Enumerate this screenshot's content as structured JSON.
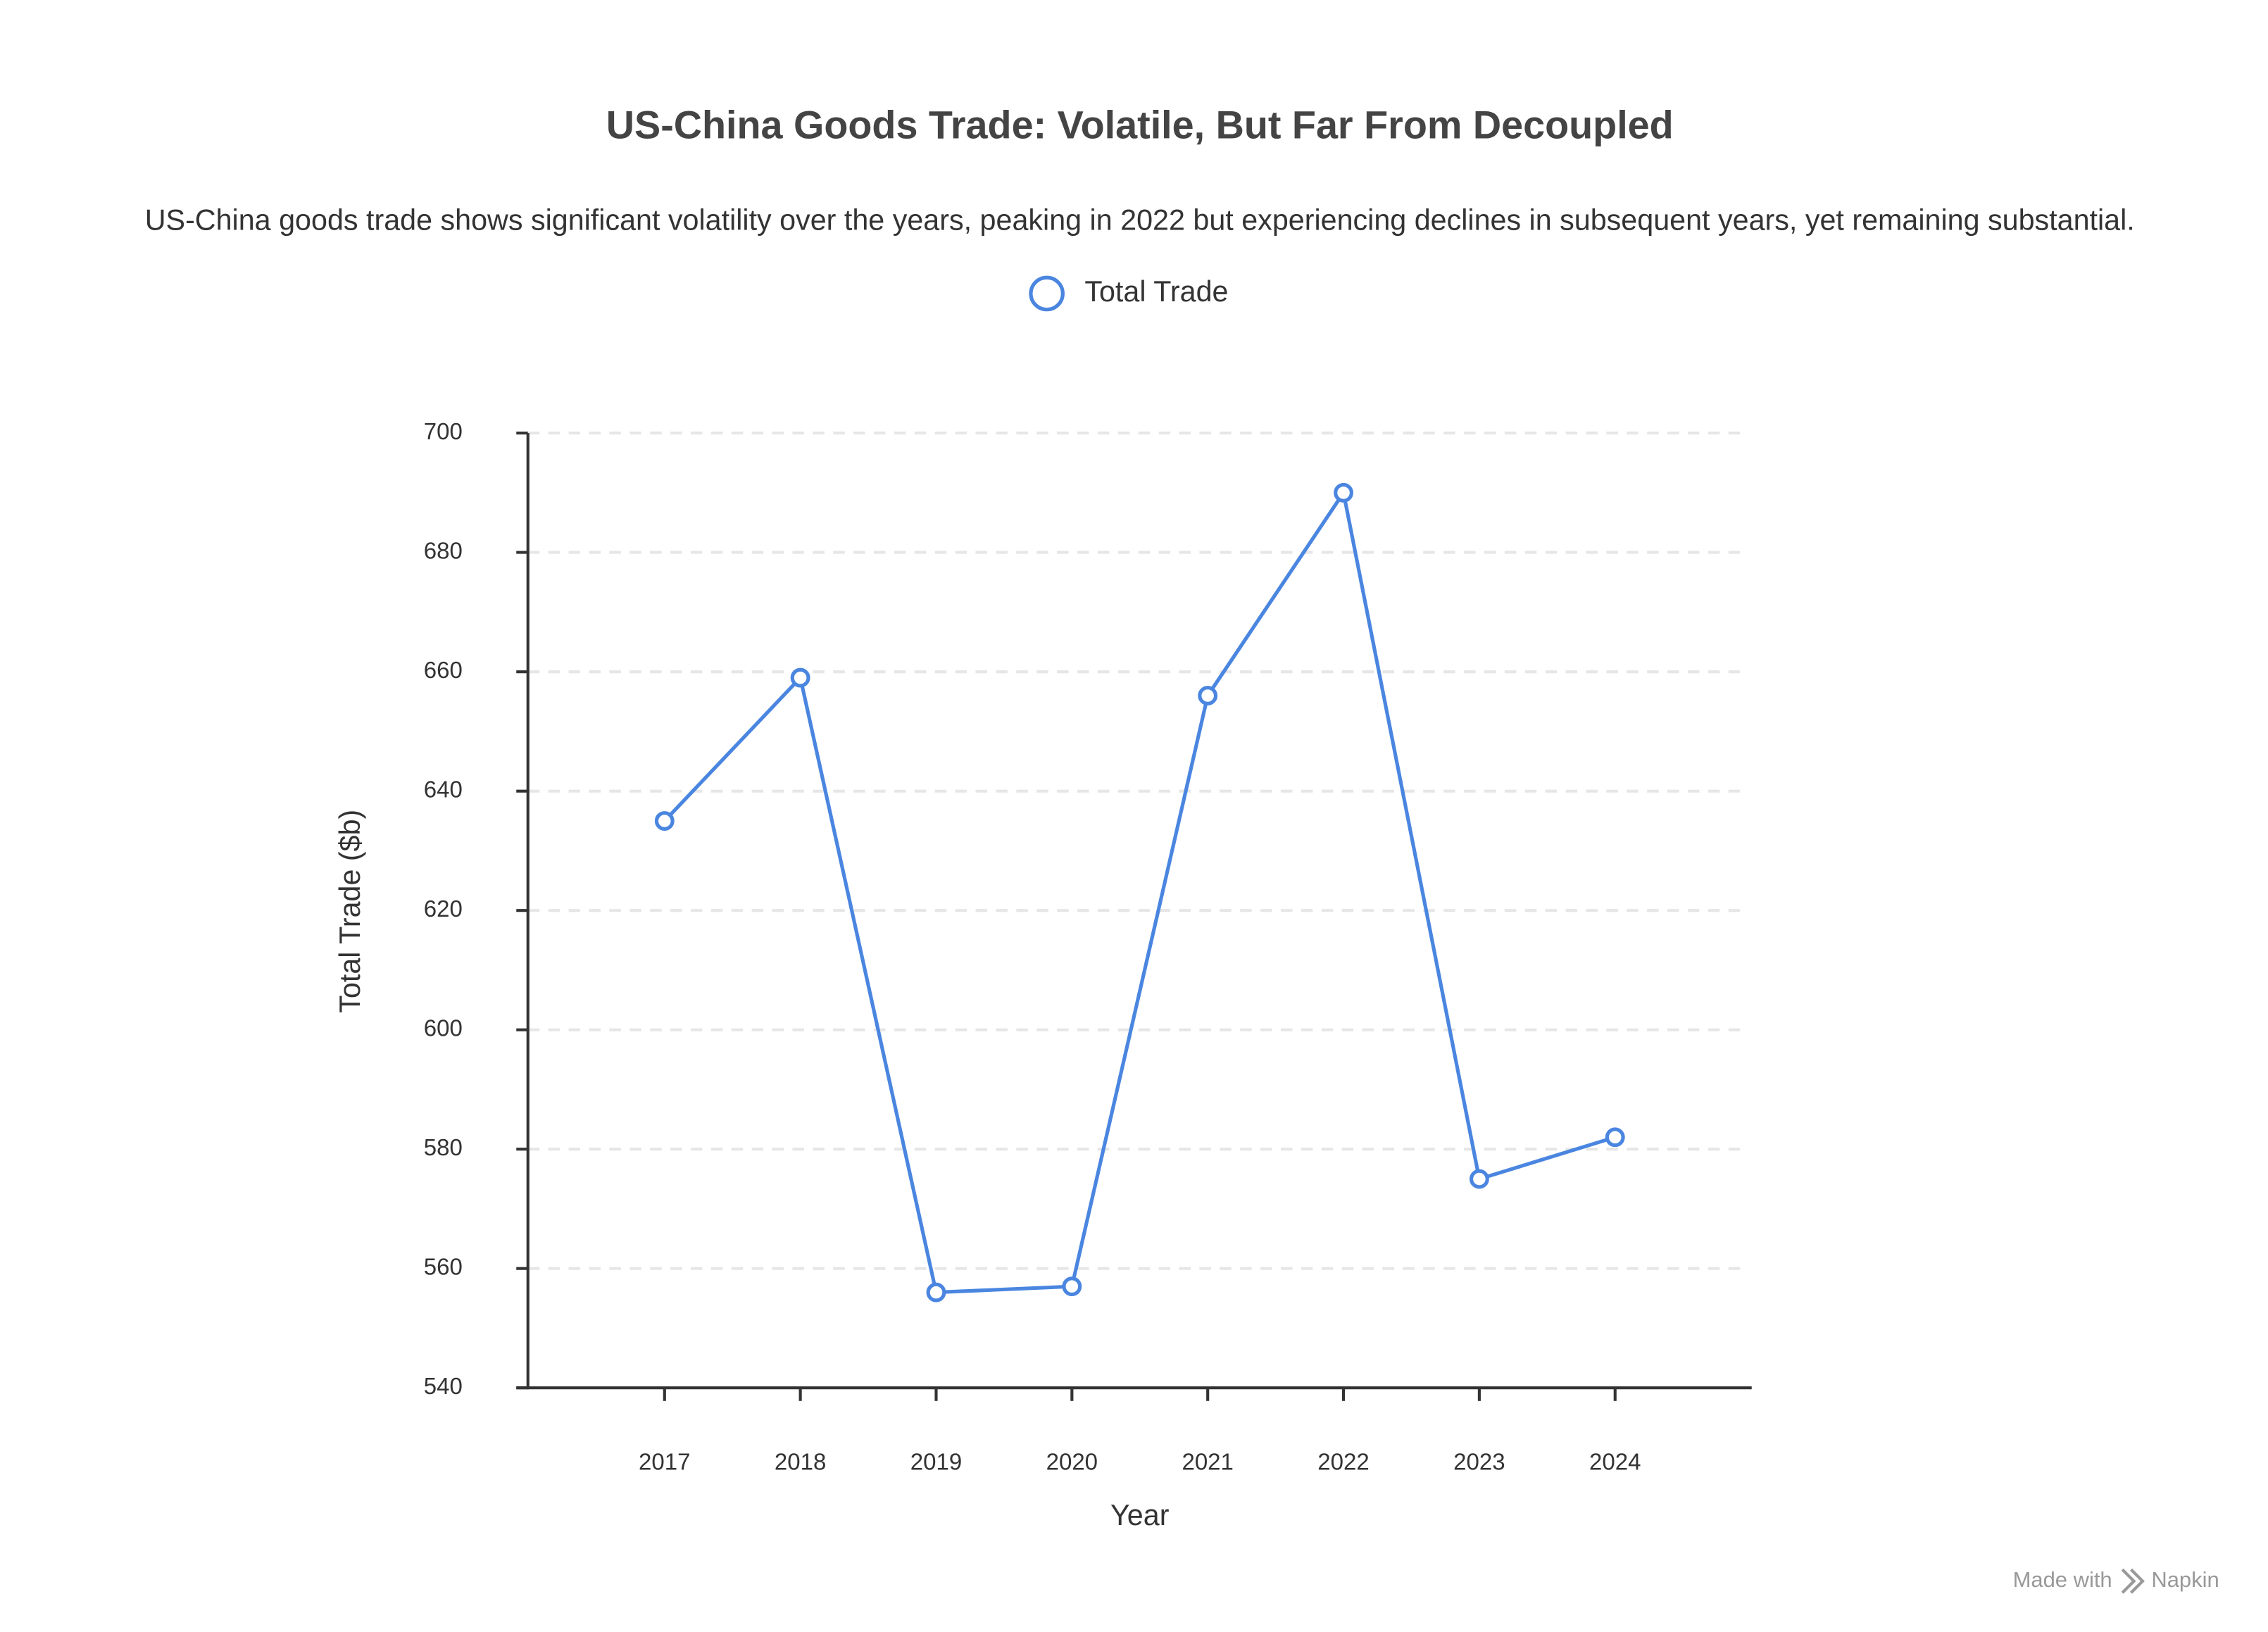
{
  "chart_data": {
    "type": "line",
    "title": "US-China Goods Trade: Volatile, But Far From Decoupled",
    "subtitle": "US-China goods trade shows significant volatility over the years, peaking in 2022 but experiencing declines in subsequent years, yet remaining substantial.",
    "xlabel": "Year",
    "ylabel": "Total Trade ($b)",
    "categories": [
      "2017",
      "2018",
      "2019",
      "2020",
      "2021",
      "2022",
      "2023",
      "2024"
    ],
    "series": [
      {
        "name": "Total Trade",
        "color": "#4a86e0",
        "values": [
          635,
          659,
          556,
          557,
          656,
          690,
          575,
          582
        ]
      }
    ],
    "ylim": [
      540,
      700
    ],
    "yticks": [
      540,
      560,
      580,
      600,
      620,
      640,
      660,
      680,
      700
    ],
    "grid": true,
    "legend": "top",
    "credit_text": "Made with",
    "credit_brand": "Napkin"
  }
}
